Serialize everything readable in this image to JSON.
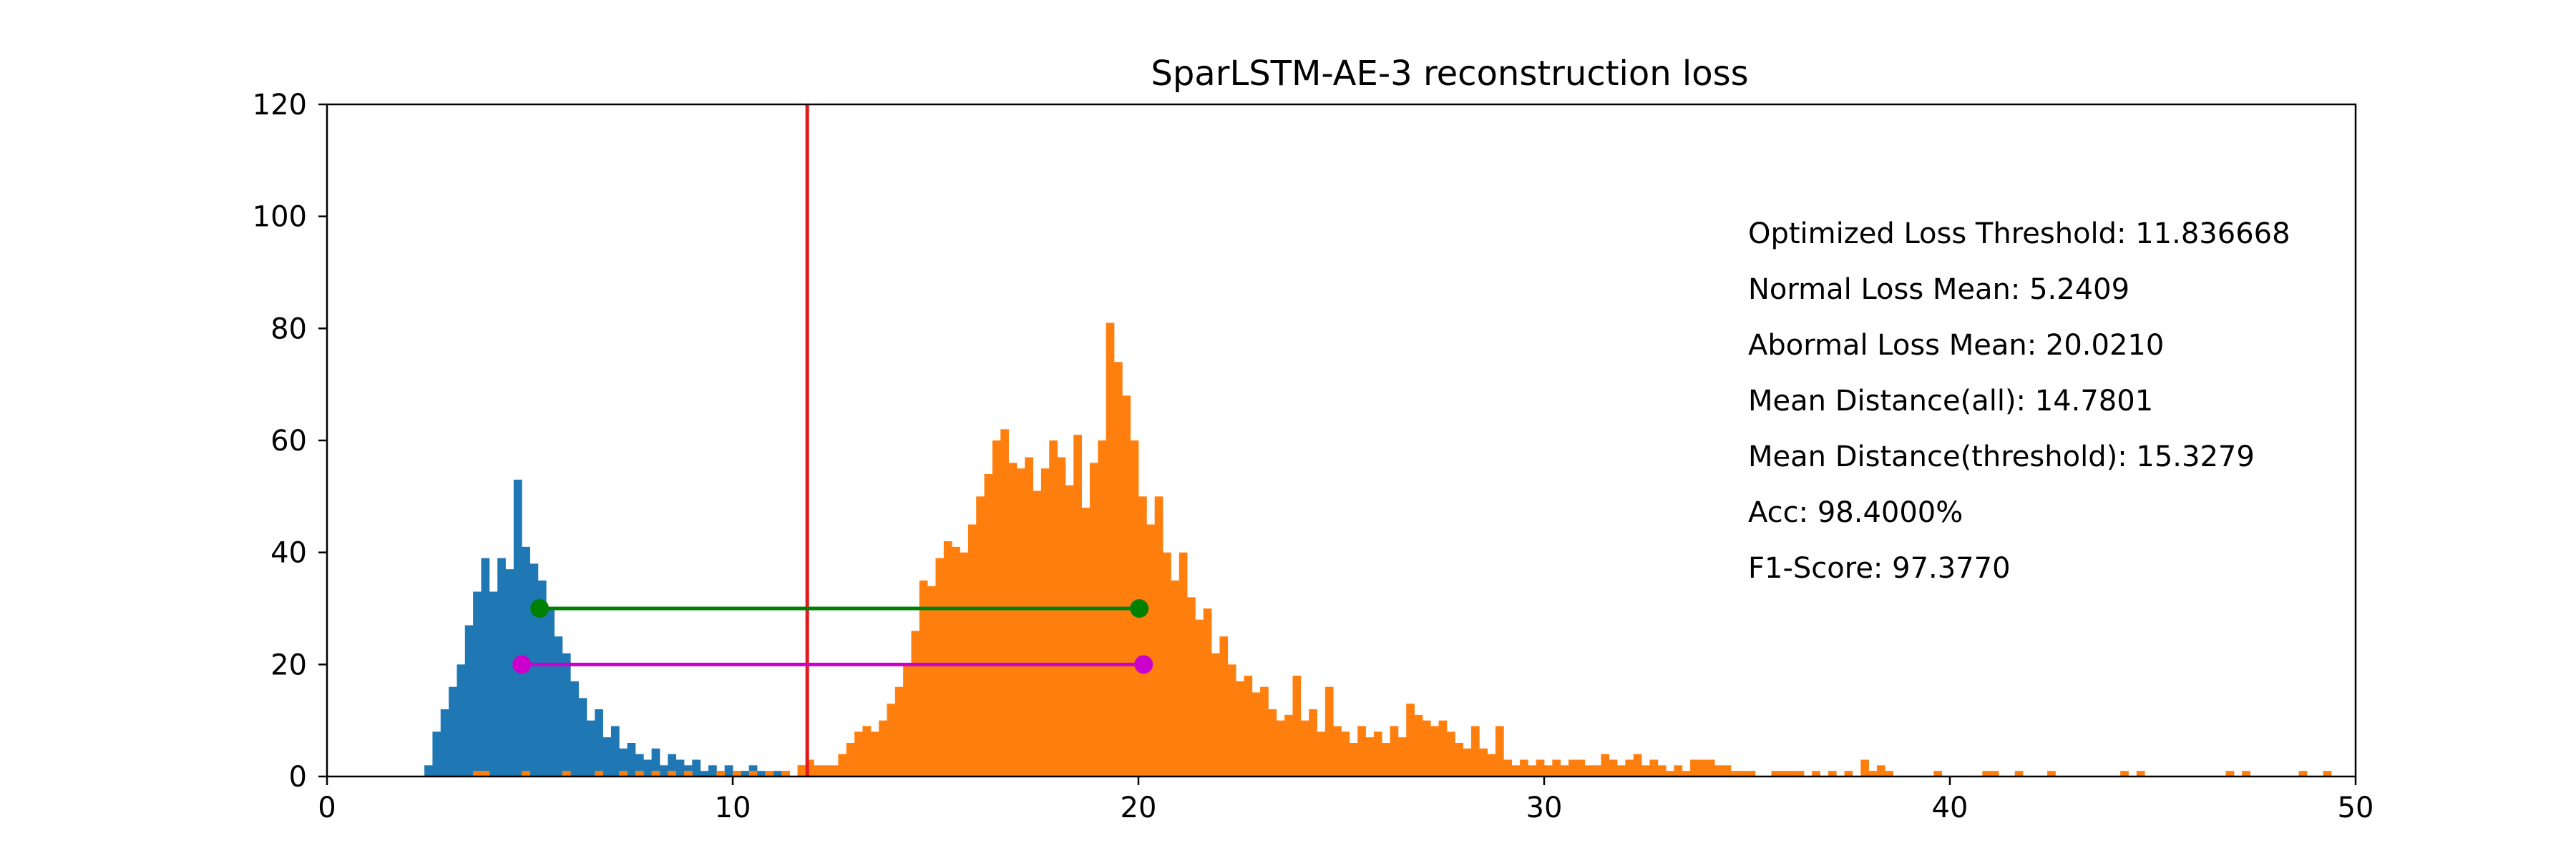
{
  "chart_data": {
    "type": "bar",
    "title": "SparLSTM-AE-3 reconstruction loss",
    "xlabel": "",
    "ylabel": "",
    "xlim": [
      0,
      50
    ],
    "ylim": [
      0,
      120
    ],
    "grid": false,
    "xticks": [
      "0",
      "10",
      "20",
      "30",
      "40",
      "50"
    ],
    "yticks": [
      "0",
      "20",
      "40",
      "60",
      "80",
      "100",
      "120"
    ],
    "bin_width": 0.2,
    "series": [
      {
        "color": "#1f77b4",
        "bins": [
          [
            2.4,
            2
          ],
          [
            2.6,
            8
          ],
          [
            2.8,
            12
          ],
          [
            3.0,
            16
          ],
          [
            3.2,
            20
          ],
          [
            3.4,
            27
          ],
          [
            3.6,
            33
          ],
          [
            3.8,
            39
          ],
          [
            4.0,
            33
          ],
          [
            4.2,
            39
          ],
          [
            4.4,
            37
          ],
          [
            4.6,
            53
          ],
          [
            4.8,
            41
          ],
          [
            5.0,
            38
          ],
          [
            5.2,
            35
          ],
          [
            5.4,
            30
          ],
          [
            5.6,
            25
          ],
          [
            5.8,
            22
          ],
          [
            6.0,
            17
          ],
          [
            6.2,
            14
          ],
          [
            6.4,
            10
          ],
          [
            6.6,
            12
          ],
          [
            6.8,
            7
          ],
          [
            7.0,
            9
          ],
          [
            7.2,
            5
          ],
          [
            7.4,
            6
          ],
          [
            7.6,
            4
          ],
          [
            7.8,
            3
          ],
          [
            8.0,
            5
          ],
          [
            8.2,
            2
          ],
          [
            8.4,
            4
          ],
          [
            8.6,
            3
          ],
          [
            8.8,
            2
          ],
          [
            9.0,
            3
          ],
          [
            9.2,
            1
          ],
          [
            9.4,
            2
          ],
          [
            9.6,
            1
          ],
          [
            9.8,
            2
          ],
          [
            10.0,
            1
          ],
          [
            10.2,
            1
          ],
          [
            10.4,
            2
          ],
          [
            10.6,
            1
          ],
          [
            11.0,
            1
          ],
          [
            11.2,
            1
          ],
          [
            11.6,
            2
          ]
        ]
      },
      {
        "color": "#ff7f0e",
        "bins": [
          [
            3.6,
            1
          ],
          [
            3.8,
            1
          ],
          [
            4.8,
            1
          ],
          [
            5.8,
            1
          ],
          [
            6.6,
            1
          ],
          [
            7.2,
            1
          ],
          [
            7.6,
            1
          ],
          [
            8.0,
            1
          ],
          [
            8.4,
            1
          ],
          [
            8.8,
            1
          ],
          [
            9.6,
            1
          ],
          [
            10.0,
            1
          ],
          [
            10.4,
            1
          ],
          [
            10.8,
            1
          ],
          [
            11.2,
            1
          ],
          [
            11.6,
            2
          ],
          [
            11.8,
            3
          ],
          [
            12.0,
            2
          ],
          [
            12.2,
            2
          ],
          [
            12.4,
            2
          ],
          [
            12.6,
            4
          ],
          [
            12.8,
            6
          ],
          [
            13.0,
            8
          ],
          [
            13.2,
            9
          ],
          [
            13.4,
            8
          ],
          [
            13.6,
            10
          ],
          [
            13.8,
            13
          ],
          [
            14.0,
            16
          ],
          [
            14.2,
            20
          ],
          [
            14.4,
            26
          ],
          [
            14.6,
            35
          ],
          [
            14.8,
            34
          ],
          [
            15.0,
            39
          ],
          [
            15.2,
            42
          ],
          [
            15.4,
            41
          ],
          [
            15.6,
            40
          ],
          [
            15.8,
            45
          ],
          [
            16.0,
            50
          ],
          [
            16.2,
            54
          ],
          [
            16.4,
            60
          ],
          [
            16.6,
            62
          ],
          [
            16.8,
            56
          ],
          [
            17.0,
            55
          ],
          [
            17.2,
            57
          ],
          [
            17.4,
            51
          ],
          [
            17.6,
            55
          ],
          [
            17.8,
            60
          ],
          [
            18.0,
            57
          ],
          [
            18.2,
            52
          ],
          [
            18.4,
            61
          ],
          [
            18.6,
            48
          ],
          [
            18.8,
            56
          ],
          [
            19.0,
            60
          ],
          [
            19.2,
            81
          ],
          [
            19.4,
            74
          ],
          [
            19.6,
            68
          ],
          [
            19.8,
            60
          ],
          [
            20.0,
            50
          ],
          [
            20.2,
            45
          ],
          [
            20.4,
            50
          ],
          [
            20.6,
            40
          ],
          [
            20.8,
            35
          ],
          [
            21.0,
            40
          ],
          [
            21.2,
            32
          ],
          [
            21.4,
            28
          ],
          [
            21.6,
            30
          ],
          [
            21.8,
            22
          ],
          [
            22.0,
            25
          ],
          [
            22.2,
            20
          ],
          [
            22.4,
            17
          ],
          [
            22.6,
            18
          ],
          [
            22.8,
            15
          ],
          [
            23.0,
            16
          ],
          [
            23.2,
            12
          ],
          [
            23.4,
            10
          ],
          [
            23.6,
            11
          ],
          [
            23.8,
            18
          ],
          [
            24.0,
            10
          ],
          [
            24.2,
            12
          ],
          [
            24.4,
            8
          ],
          [
            24.6,
            16
          ],
          [
            24.8,
            9
          ],
          [
            25.0,
            8
          ],
          [
            25.2,
            6
          ],
          [
            25.4,
            9
          ],
          [
            25.6,
            7
          ],
          [
            25.8,
            8
          ],
          [
            26.0,
            6
          ],
          [
            26.2,
            9
          ],
          [
            26.4,
            7
          ],
          [
            26.6,
            13
          ],
          [
            26.8,
            11
          ],
          [
            27.0,
            10
          ],
          [
            27.2,
            9
          ],
          [
            27.4,
            10
          ],
          [
            27.6,
            8
          ],
          [
            27.8,
            6
          ],
          [
            28.0,
            5
          ],
          [
            28.2,
            9
          ],
          [
            28.4,
            5
          ],
          [
            28.6,
            4
          ],
          [
            28.8,
            9
          ],
          [
            29.0,
            3
          ],
          [
            29.2,
            2
          ],
          [
            29.4,
            3
          ],
          [
            29.6,
            2
          ],
          [
            29.8,
            3
          ],
          [
            30.0,
            2
          ],
          [
            30.2,
            3
          ],
          [
            30.4,
            2
          ],
          [
            30.6,
            3
          ],
          [
            30.8,
            3
          ],
          [
            31.0,
            2
          ],
          [
            31.2,
            2
          ],
          [
            31.4,
            4
          ],
          [
            31.6,
            3
          ],
          [
            31.8,
            2
          ],
          [
            32.0,
            3
          ],
          [
            32.2,
            4
          ],
          [
            32.4,
            2
          ],
          [
            32.6,
            3
          ],
          [
            32.8,
            2
          ],
          [
            33.0,
            1
          ],
          [
            33.2,
            2
          ],
          [
            33.4,
            1
          ],
          [
            33.6,
            3
          ],
          [
            33.8,
            3
          ],
          [
            34.0,
            3
          ],
          [
            34.2,
            2
          ],
          [
            34.4,
            2
          ],
          [
            34.6,
            1
          ],
          [
            34.8,
            1
          ],
          [
            35.0,
            1
          ],
          [
            35.6,
            1
          ],
          [
            35.8,
            1
          ],
          [
            36.0,
            1
          ],
          [
            36.2,
            1
          ],
          [
            36.6,
            1
          ],
          [
            37.0,
            1
          ],
          [
            37.4,
            1
          ],
          [
            37.8,
            3
          ],
          [
            38.0,
            1
          ],
          [
            38.2,
            2
          ],
          [
            38.4,
            1
          ],
          [
            39.6,
            1
          ],
          [
            40.8,
            1
          ],
          [
            41.0,
            1
          ],
          [
            41.6,
            1
          ],
          [
            42.4,
            1
          ],
          [
            44.2,
            1
          ],
          [
            44.6,
            1
          ],
          [
            46.8,
            1
          ],
          [
            47.2,
            1
          ],
          [
            48.6,
            1
          ],
          [
            49.2,
            1
          ]
        ]
      }
    ],
    "threshold_line": {
      "x": 11.836668,
      "color": "#e31a1c"
    },
    "segments": [
      {
        "x1": 5.2409,
        "x2": 20.021,
        "y": 30,
        "color": "#008000"
      },
      {
        "x1": 4.8,
        "x2": 20.1279,
        "y": 20,
        "color": "#cc00cc"
      }
    ],
    "annotations": [
      "Optimized Loss Threshold: 11.836668",
      "Normal Loss Mean: 5.2409",
      "Abormal Loss Mean: 20.0210",
      "Mean Distance(all): 14.7801",
      "Mean Distance(threshold): 15.3279",
      "Acc: 98.4000%",
      "F1-Score: 97.3770"
    ]
  }
}
